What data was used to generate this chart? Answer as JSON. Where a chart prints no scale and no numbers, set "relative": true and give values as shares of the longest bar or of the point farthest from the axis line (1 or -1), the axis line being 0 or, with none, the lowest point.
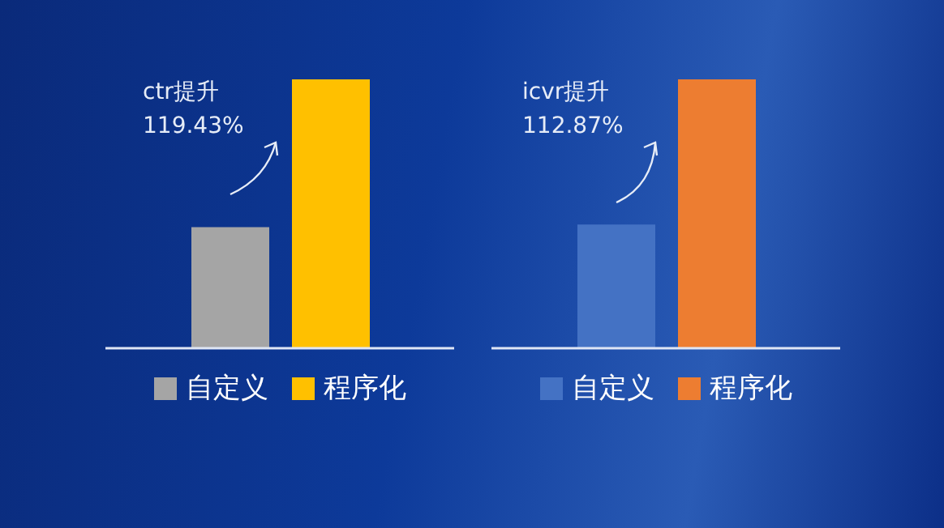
{
  "chart_data": [
    {
      "type": "bar",
      "relative": true,
      "categories": [
        null
      ],
      "legend": "bottom",
      "annotations": [
        "ctr提升",
        "119.43%"
      ],
      "series": [
        {
          "name": "自定义",
          "color": "#a5a5a5",
          "values": [
            0.45
          ]
        },
        {
          "name": "程序化",
          "color": "#ffc000",
          "values": [
            1
          ]
        }
      ]
    },
    {
      "type": "bar",
      "relative": true,
      "categories": [
        null
      ],
      "legend": "bottom",
      "annotations": [
        "icvr提升",
        "112.87%"
      ],
      "series": [
        {
          "name": "自定义",
          "color": "#4472c4",
          "values": [
            0.46
          ]
        },
        {
          "name": "程序化",
          "color": "#ed7d31",
          "values": [
            1
          ]
        }
      ]
    }
  ]
}
